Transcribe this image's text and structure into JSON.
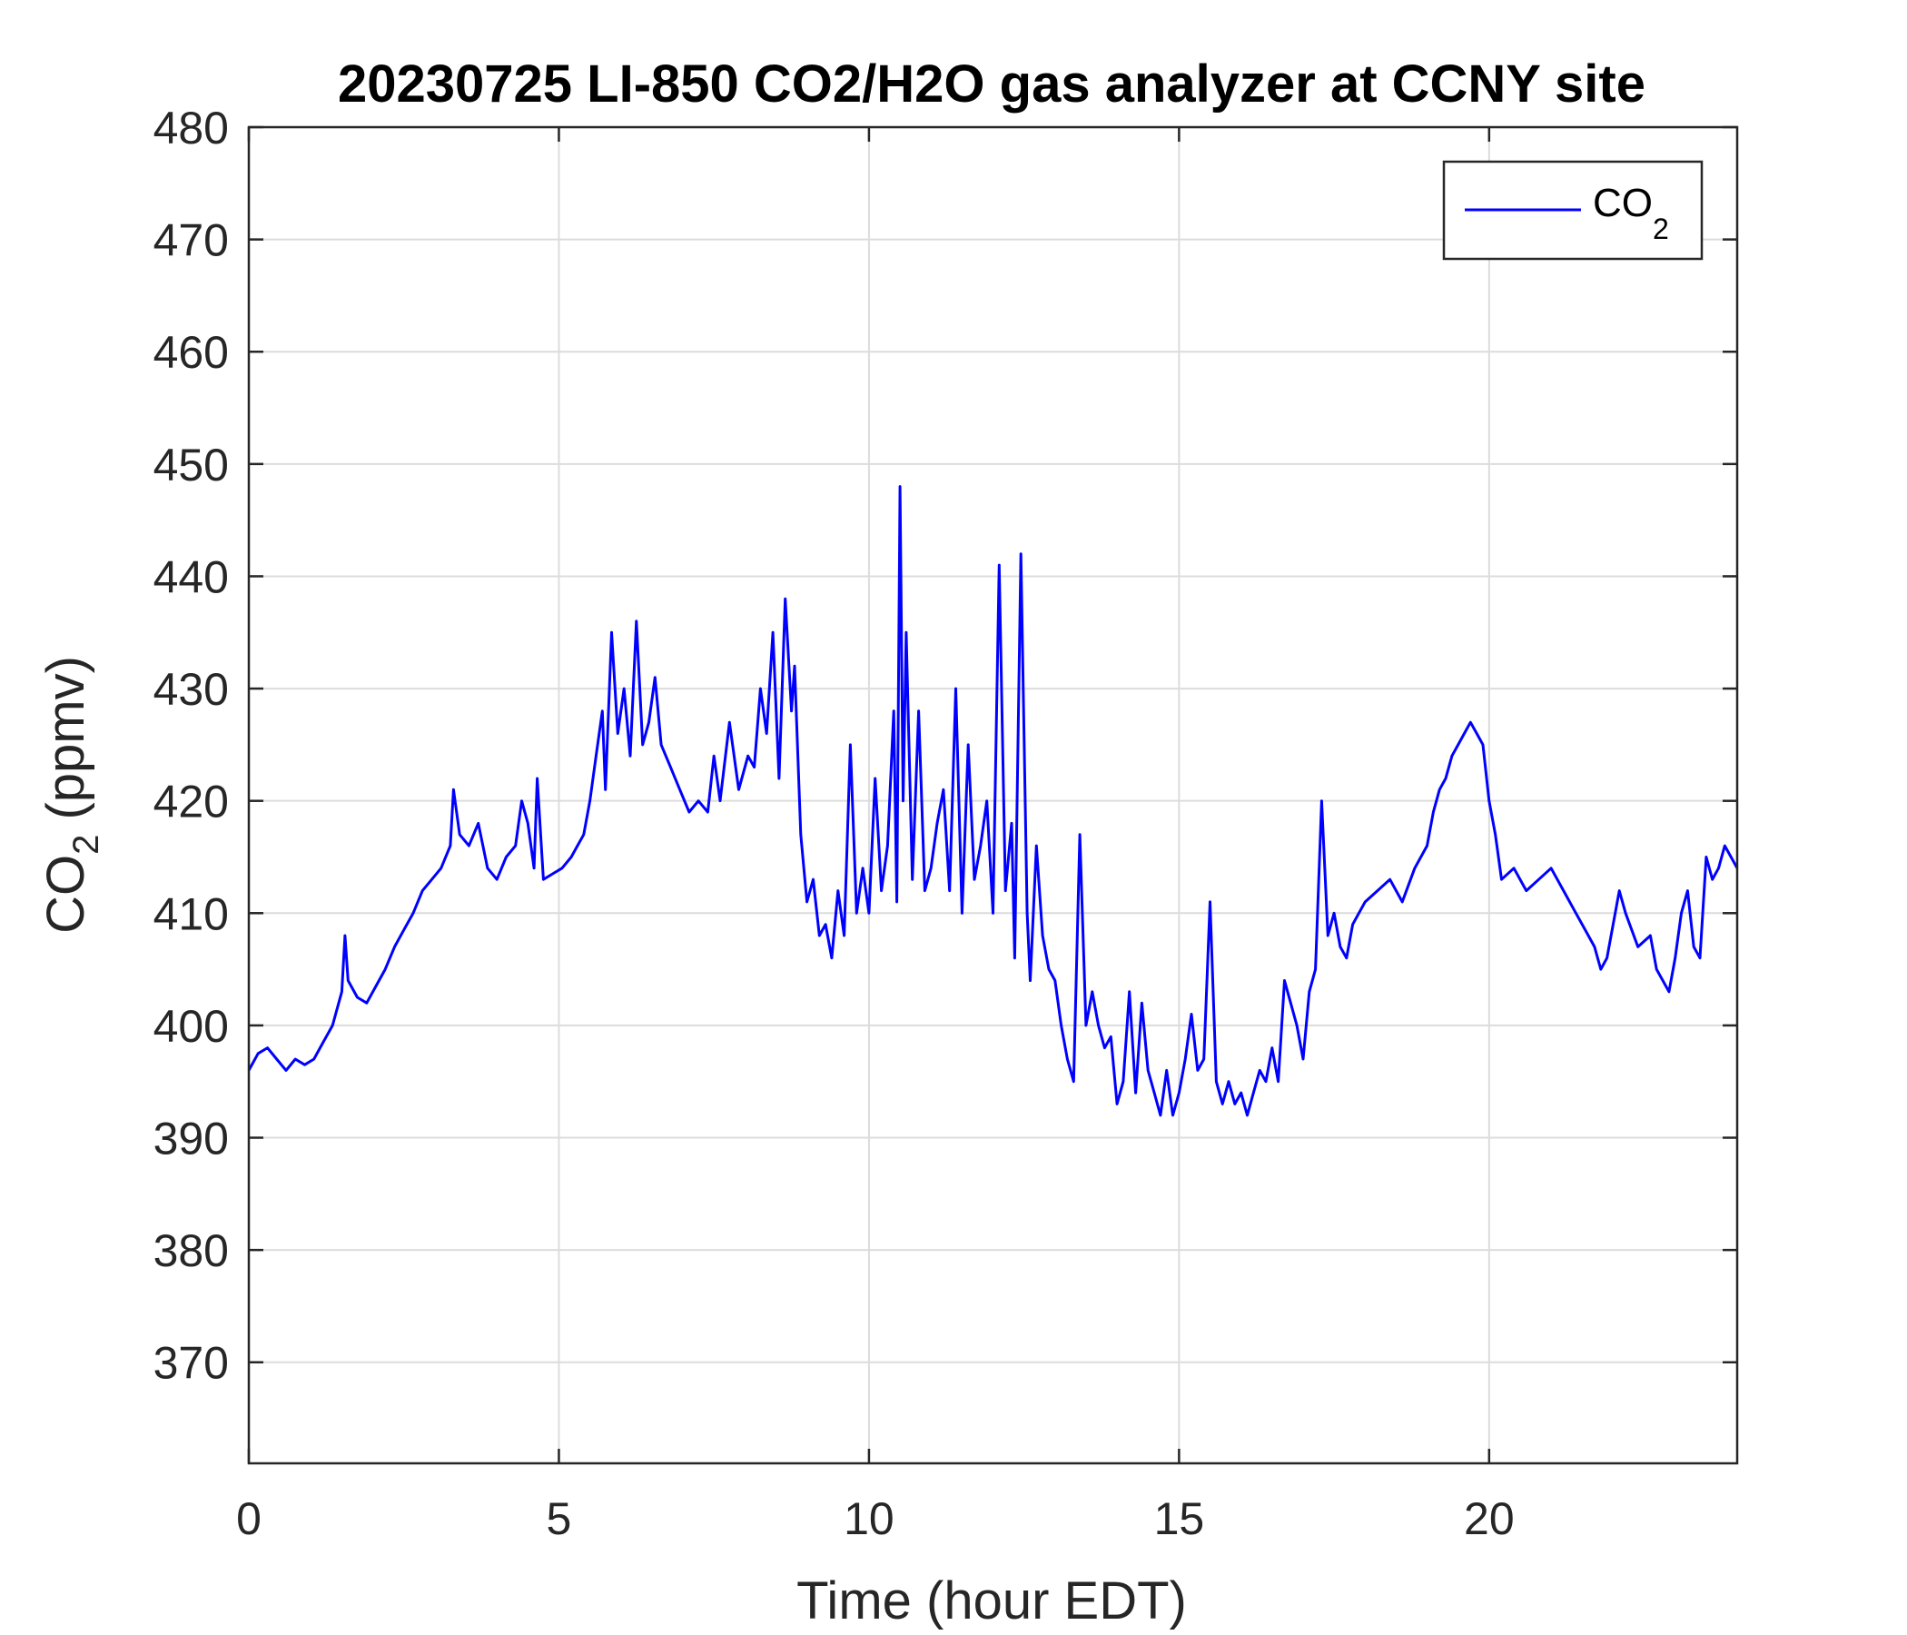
{
  "chart_data": {
    "type": "line",
    "title": "20230725 LI-850 CO2/H2O gas analyzer at CCNY site",
    "xlabel": "Time (hour EDT)",
    "ylabel": {
      "main": "CO",
      "sub": "2",
      "unit": " (ppmv)"
    },
    "xlim": [
      0,
      24
    ],
    "ylim": [
      361,
      480
    ],
    "xticks": [
      "0",
      "5",
      "10",
      "15",
      "20"
    ],
    "yticks": [
      "370",
      "380",
      "390",
      "400",
      "410",
      "420",
      "430",
      "440",
      "450",
      "460",
      "470",
      "480"
    ],
    "grid": true,
    "legend": {
      "position": "top-right"
    },
    "series": [
      {
        "name": {
          "main": "CO",
          "sub": "2"
        },
        "color": "#0000ff",
        "x": [
          0.0,
          0.15,
          0.3,
          0.45,
          0.6,
          0.75,
          0.9,
          1.05,
          1.2,
          1.35,
          1.5,
          1.55,
          1.6,
          1.75,
          1.9,
          2.05,
          2.2,
          2.35,
          2.5,
          2.65,
          2.8,
          2.95,
          3.1,
          3.25,
          3.3,
          3.4,
          3.55,
          3.7,
          3.85,
          4.0,
          4.15,
          4.3,
          4.4,
          4.5,
          4.6,
          4.65,
          4.75,
          4.9,
          5.05,
          5.2,
          5.3,
          5.4,
          5.5,
          5.6,
          5.7,
          5.75,
          5.85,
          5.95,
          6.05,
          6.15,
          6.25,
          6.35,
          6.45,
          6.55,
          6.65,
          6.8,
          6.95,
          7.1,
          7.25,
          7.4,
          7.5,
          7.6,
          7.75,
          7.9,
          8.05,
          8.15,
          8.25,
          8.35,
          8.45,
          8.55,
          8.65,
          8.75,
          8.8,
          8.9,
          9.0,
          9.1,
          9.2,
          9.3,
          9.4,
          9.5,
          9.6,
          9.7,
          9.8,
          9.9,
          10.0,
          10.1,
          10.2,
          10.3,
          10.4,
          10.45,
          10.5,
          10.55,
          10.6,
          10.7,
          10.8,
          10.9,
          11.0,
          11.1,
          11.2,
          11.3,
          11.4,
          11.5,
          11.6,
          11.7,
          11.8,
          11.9,
          12.0,
          12.1,
          12.2,
          12.3,
          12.35,
          12.45,
          12.55,
          12.6,
          12.7,
          12.8,
          12.9,
          13.0,
          13.1,
          13.2,
          13.3,
          13.4,
          13.5,
          13.6,
          13.7,
          13.8,
          13.9,
          14.0,
          14.1,
          14.2,
          14.3,
          14.4,
          14.5,
          14.6,
          14.7,
          14.8,
          14.9,
          15.0,
          15.1,
          15.2,
          15.3,
          15.4,
          15.5,
          15.6,
          15.7,
          15.8,
          15.9,
          16.0,
          16.1,
          16.2,
          16.3,
          16.4,
          16.5,
          16.6,
          16.7,
          16.8,
          16.9,
          17.0,
          17.1,
          17.2,
          17.3,
          17.4,
          17.5,
          17.6,
          17.7,
          17.8,
          17.9,
          18.0,
          18.2,
          18.4,
          18.6,
          18.8,
          19.0,
          19.1,
          19.2,
          19.3,
          19.4,
          19.5,
          19.6,
          19.7,
          19.8,
          19.9,
          20.0,
          20.1,
          20.2,
          20.4,
          20.6,
          20.8,
          21.0,
          21.2,
          21.4,
          21.6,
          21.7,
          21.8,
          21.9,
          22.0,
          22.1,
          22.2,
          22.4,
          22.6,
          22.7,
          22.8,
          22.9,
          23.0,
          23.1,
          23.2,
          23.3,
          23.4,
          23.5,
          23.6,
          23.7,
          23.8,
          23.9,
          24.0
        ],
        "y": [
          396,
          397.5,
          398,
          397,
          396,
          397,
          396.5,
          397,
          398.5,
          400,
          403,
          408,
          404,
          402.5,
          402,
          403.5,
          405,
          407,
          408.5,
          410,
          412,
          413,
          414,
          416,
          421,
          417,
          416,
          418,
          414,
          413,
          415,
          416,
          420,
          418,
          414,
          422,
          413,
          413.5,
          414,
          415,
          416,
          417,
          420,
          424,
          428,
          421,
          435,
          426,
          430,
          424,
          436,
          425,
          427,
          431,
          425,
          423,
          421,
          419,
          420,
          419,
          424,
          420,
          427,
          421,
          424,
          423,
          430,
          426,
          435,
          422,
          438,
          428,
          432,
          417,
          411,
          413,
          408,
          409,
          406,
          412,
          408,
          425,
          410,
          414,
          410,
          422,
          412,
          416,
          428,
          411,
          448,
          420,
          435,
          413,
          428,
          412,
          414,
          418,
          421,
          412,
          430,
          410,
          425,
          413,
          416,
          420,
          410,
          441,
          412,
          418,
          406,
          442,
          410,
          404,
          416,
          408,
          405,
          404,
          400,
          397,
          395,
          417,
          400,
          403,
          400,
          398,
          399,
          393,
          395,
          403,
          394,
          402,
          396,
          394,
          392,
          396,
          392,
          394,
          397,
          401,
          396,
          397,
          411,
          395,
          393,
          395,
          393,
          394,
          392,
          394,
          396,
          395,
          398,
          395,
          404,
          402,
          400,
          397,
          403,
          405,
          420,
          408,
          410,
          407,
          406,
          409,
          410,
          411,
          412,
          413,
          411,
          414,
          416,
          419,
          421,
          422,
          424,
          425,
          426,
          427,
          426,
          425,
          420,
          417,
          413,
          414,
          412,
          413,
          414,
          412,
          410,
          408,
          407,
          405,
          406,
          409,
          412,
          410,
          407,
          408,
          405,
          404,
          403,
          406,
          410,
          412,
          407,
          406,
          415,
          413,
          414,
          416,
          415,
          414
        ]
      }
    ]
  }
}
